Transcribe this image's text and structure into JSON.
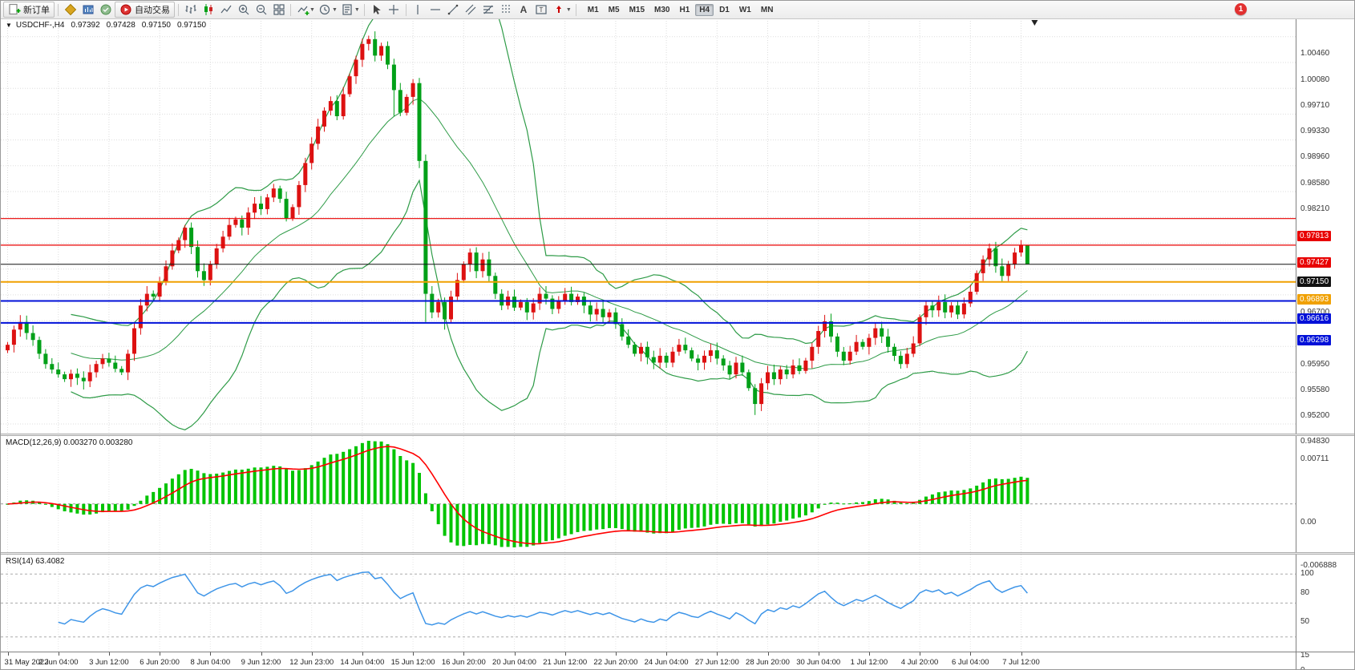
{
  "toolbar": {
    "new_order": "新订单",
    "autotrading": "自动交易",
    "timeframes": [
      "M1",
      "M5",
      "M15",
      "M30",
      "H1",
      "H4",
      "D1",
      "W1",
      "MN"
    ],
    "active_timeframe": "H4",
    "notification_count": "1"
  },
  "header": {
    "symbol": "USDCHF-,H4",
    "open": "0.97392",
    "high": "0.97428",
    "low": "0.97150",
    "close": "0.97150"
  },
  "macd": {
    "title": "MACD(12,26,9) 0.003270 0.003280",
    "axis_labels": [
      "0.00711",
      "0.00",
      "-0.006888"
    ]
  },
  "rsi": {
    "title": "RSI(14) 63.4082",
    "axis_labels": [
      {
        "text": "100",
        "value": 100
      },
      {
        "text": "80",
        "value": 80
      },
      {
        "text": "50",
        "value": 50
      },
      {
        "text": "15",
        "value": 15
      },
      {
        "text": "0",
        "value": 0
      }
    ],
    "levels": [
      80,
      50,
      15
    ]
  },
  "overlay_lines": [
    {
      "label": "0.97813",
      "price": 0.97813,
      "color": "#E80000",
      "width": 1.2
    },
    {
      "label": "0.97427",
      "price": 0.97427,
      "color": "#E80000",
      "width": 1.2
    },
    {
      "label": "0.97150",
      "price": 0.9715,
      "color": "#111111",
      "width": 1
    },
    {
      "label": "0.96893",
      "price": 0.96893,
      "color": "#F0A000",
      "width": 2
    },
    {
      "label": "0.96616",
      "price": 0.96616,
      "color": "#0010D8",
      "width": 2
    },
    {
      "label": "0.96298",
      "price": 0.96298,
      "color": "#0010D8",
      "width": 2
    }
  ],
  "chart_data": {
    "type": "candlestick",
    "symbol": "USDCHF",
    "timeframe": "H4",
    "title": "USDCHF-,H4",
    "ylim": [
      0.9469,
      1.0072
    ],
    "bars_per_label": 8,
    "first_open": 0.959,
    "closes": [
      0.9598,
      0.962,
      0.9631,
      0.9615,
      0.9605,
      0.9585,
      0.957,
      0.9562,
      0.9555,
      0.9548,
      0.9556,
      0.955,
      0.9545,
      0.9558,
      0.957,
      0.9578,
      0.9572,
      0.9563,
      0.9558,
      0.9585,
      0.9622,
      0.9655,
      0.9672,
      0.9668,
      0.969,
      0.9712,
      0.9735,
      0.975,
      0.9768,
      0.974,
      0.9705,
      0.9692,
      0.9715,
      0.9738,
      0.9755,
      0.9772,
      0.978,
      0.9768,
      0.979,
      0.9803,
      0.9795,
      0.9812,
      0.9825,
      0.981,
      0.9782,
      0.9798,
      0.983,
      0.9862,
      0.989,
      0.9915,
      0.9938,
      0.9952,
      0.993,
      0.9962,
      0.9988,
      1.0012,
      1.0035,
      1.0042,
      1.0018,
      1.0032,
      1.0005,
      0.9968,
      0.9935,
      0.9958,
      0.9978,
      0.9865,
      0.9672,
      0.9645,
      0.966,
      0.9635,
      0.9668,
      0.9692,
      0.9715,
      0.9732,
      0.9705,
      0.9722,
      0.9698,
      0.9672,
      0.9655,
      0.9668,
      0.9652,
      0.966,
      0.9645,
      0.9658,
      0.9672,
      0.9665,
      0.965,
      0.9662,
      0.9672,
      0.966,
      0.9668,
      0.9655,
      0.9642,
      0.965,
      0.9638,
      0.9645,
      0.9628,
      0.961,
      0.9598,
      0.9585,
      0.9595,
      0.958,
      0.9572,
      0.9582,
      0.9572,
      0.9588,
      0.9598,
      0.959,
      0.9578,
      0.9572,
      0.9582,
      0.959,
      0.9578,
      0.9568,
      0.9555,
      0.9572,
      0.9558,
      0.9535,
      0.9512,
      0.9542,
      0.9558,
      0.9548,
      0.9562,
      0.9555,
      0.9568,
      0.956,
      0.9575,
      0.9595,
      0.9618,
      0.9632,
      0.961,
      0.9588,
      0.9575,
      0.9588,
      0.9602,
      0.9595,
      0.9608,
      0.9622,
      0.961,
      0.9595,
      0.9582,
      0.957,
      0.9585,
      0.96,
      0.9638,
      0.9655,
      0.9648,
      0.966,
      0.9645,
      0.9655,
      0.9642,
      0.9658,
      0.9675,
      0.9702,
      0.9722,
      0.9738,
      0.9712,
      0.9698,
      0.9715,
      0.9732,
      0.9742,
      0.9715
    ],
    "extremes": [
      [
        2,
        "h",
        0.9641
      ],
      [
        12,
        "l",
        0.9533
      ],
      [
        28,
        "h",
        0.9772
      ],
      [
        43,
        "h",
        0.9829
      ],
      [
        57,
        "h",
        1.0047
      ],
      [
        61,
        "l",
        0.993
      ],
      [
        66,
        "l",
        0.9631
      ],
      [
        69,
        "l",
        0.962
      ],
      [
        118,
        "l",
        0.9496
      ],
      [
        155,
        "h",
        0.9745
      ],
      [
        160,
        "h",
        0.975
      ],
      [
        161,
        "h",
        0.97428
      ],
      [
        161,
        "l",
        0.9715
      ]
    ],
    "price_axis_labels": [
      {
        "text": "1.00460",
        "price": 1.0046
      },
      {
        "text": "1.00080",
        "price": 1.0008
      },
      {
        "text": "0.99710",
        "price": 0.9971
      },
      {
        "text": "0.99330",
        "price": 0.9933
      },
      {
        "text": "0.98960",
        "price": 0.9896
      },
      {
        "text": "0.98580",
        "price": 0.9858
      },
      {
        "text": "0.98210",
        "price": 0.9821
      },
      {
        "text": "0.96700",
        "price": 0.967
      },
      {
        "text": "0.95950",
        "price": 0.9595
      },
      {
        "text": "0.95580",
        "price": 0.9558
      },
      {
        "text": "0.95200",
        "price": 0.952
      },
      {
        "text": "0.94830",
        "price": 0.9483
      }
    ],
    "x_labels": [
      "31 May 2022",
      "2 Jun 04:00",
      "3 Jun 12:00",
      "6 Jun 20:00",
      "8 Jun 04:00",
      "9 Jun 12:00",
      "12 Jun 23:00",
      "14 Jun 04:00",
      "15 Jun 12:00",
      "16 Jun 20:00",
      "20 Jun 04:00",
      "21 Jun 12:00",
      "22 Jun 20:00",
      "24 Jun 04:00",
      "27 Jun 12:00",
      "28 Jun 20:00",
      "30 Jun 04:00",
      "1 Jul 12:00",
      "4 Jul 20:00",
      "6 Jul 04:00",
      "7 Jul 12:00"
    ],
    "indicators": {
      "bollinger": {
        "period": 20,
        "deviation": 2
      },
      "macd": {
        "fast": 12,
        "slow": 26,
        "signal": 9
      },
      "rsi": {
        "period": 14
      }
    },
    "colors": {
      "up": "#DD1111",
      "down": "#00A018",
      "bollinger": "#2E9B47",
      "macd_hist": "#00C400",
      "macd_signal": "#FF0000",
      "rsi": "#3E95E8",
      "grid": "#DDDDDD"
    }
  }
}
